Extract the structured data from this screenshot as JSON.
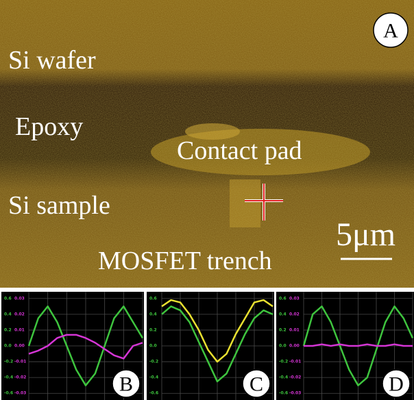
{
  "image": {
    "panel_label": "A",
    "labels": [
      "Si wafer",
      "Epoxy",
      "Contact pad",
      "Si sample",
      "MOSFET trench"
    ],
    "scale_bar": "5μm"
  },
  "chart_data": [
    {
      "type": "line",
      "panel_label": "B",
      "ylim": [
        -0.65,
        0.65
      ],
      "yticks": [
        0.6,
        0.4,
        0.2,
        {
          "value": 0,
          "label": "0.0"
        },
        -0.2,
        -0.4,
        -0.6
      ],
      "y2lim": [
        -0.0325,
        0.0325
      ],
      "y2ticks": [
        0.03,
        0.02,
        0.01,
        {
          "value": 0,
          "label": "0.00"
        },
        -0.01,
        -0.02,
        -0.03
      ],
      "grid": true,
      "series": [
        {
          "color": "#3ec43e",
          "values": [
            0.0,
            0.35,
            0.5,
            0.3,
            0.0,
            -0.3,
            -0.5,
            -0.35,
            0.0,
            0.35,
            0.5,
            0.3,
            0.1
          ]
        },
        {
          "color": "#d535d5",
          "axis": "y2",
          "values": [
            -0.005,
            -0.003,
            0.0,
            0.005,
            0.007,
            0.007,
            0.005,
            0.002,
            -0.002,
            -0.006,
            -0.008,
            0.0,
            0.002
          ]
        }
      ]
    },
    {
      "type": "line",
      "panel_label": "C",
      "ylim": [
        -0.65,
        0.65
      ],
      "yticks": [
        0.6,
        0.4,
        0.2,
        {
          "value": 0,
          "label": "0.0"
        },
        -0.2,
        -0.4,
        -0.6
      ],
      "grid": true,
      "series": [
        {
          "color": "#3ec43e",
          "values": [
            0.4,
            0.5,
            0.45,
            0.3,
            0.05,
            -0.2,
            -0.45,
            -0.35,
            -0.1,
            0.15,
            0.35,
            0.45,
            0.4
          ]
        },
        {
          "color": "#e8e030",
          "values": [
            0.5,
            0.58,
            0.55,
            0.4,
            0.2,
            -0.05,
            -0.2,
            -0.1,
            0.15,
            0.35,
            0.55,
            0.58,
            0.5
          ]
        }
      ]
    },
    {
      "type": "line",
      "panel_label": "D",
      "ylim": [
        -0.65,
        0.65
      ],
      "yticks": [
        0.6,
        0.4,
        0.2,
        {
          "value": 0,
          "label": "0.0"
        },
        -0.2,
        -0.4,
        -0.6
      ],
      "y2lim": [
        -0.0325,
        0.0325
      ],
      "y2ticks": [
        0.03,
        0.02,
        0.01,
        {
          "value": 0,
          "label": "0.00"
        },
        -0.01,
        -0.02,
        -0.03
      ],
      "grid": true,
      "series": [
        {
          "color": "#3ec43e",
          "values": [
            0.0,
            0.4,
            0.5,
            0.3,
            0.0,
            -0.3,
            -0.5,
            -0.4,
            -0.05,
            0.3,
            0.5,
            0.35,
            0.1
          ]
        },
        {
          "color": "#d535d5",
          "axis": "y2",
          "values": [
            0.0,
            0.0,
            0.001,
            0.0,
            0.001,
            0.0,
            0.0,
            0.001,
            0.0,
            0.0,
            0.001,
            0.0,
            0.0
          ]
        }
      ]
    }
  ]
}
